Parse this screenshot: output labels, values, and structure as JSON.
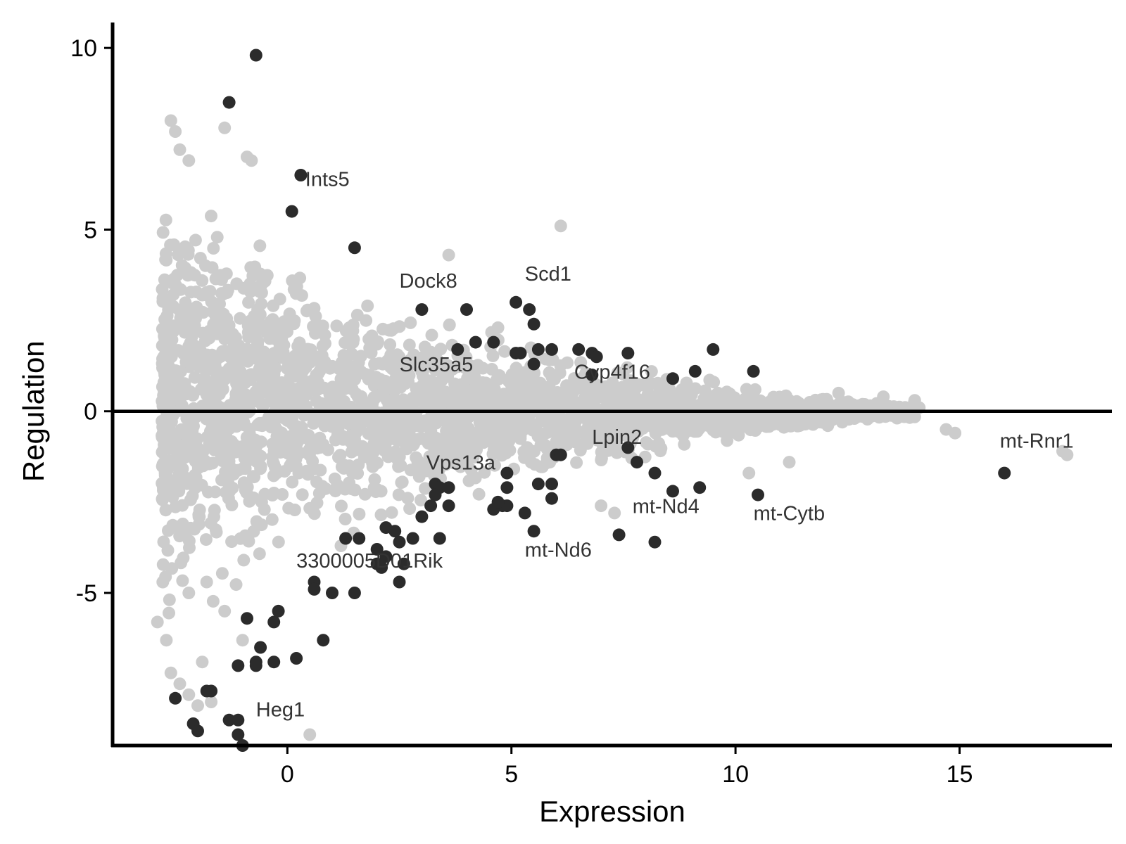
{
  "chart_data": {
    "type": "scatter",
    "xlabel": "Expression",
    "ylabel": "Regulation",
    "xlim": [
      -3.9,
      18.4
    ],
    "ylim": [
      -9.2,
      10.7
    ],
    "x_ticks": [
      0,
      5,
      10,
      15
    ],
    "y_ticks": [
      10,
      5,
      0,
      -5
    ],
    "x_tick_labels": [
      "0",
      "5",
      "10",
      "15"
    ],
    "y_tick_labels": [
      "10",
      "5",
      "0",
      "-5"
    ],
    "hline_y": 0,
    "grid": false,
    "legend": "none",
    "colors": {
      "background_points": "#cccccc",
      "highlight_points": "#2b2b2b",
      "label_text": "#333333",
      "axis": "#000000"
    },
    "background_cloud": {
      "description_free": true,
      "upper_envelope": [
        [
          -2.8,
          7.1
        ],
        [
          -2.0,
          7.6
        ],
        [
          -1.5,
          6.2
        ],
        [
          -0.8,
          6.4
        ],
        [
          -0.3,
          5.3
        ],
        [
          0.5,
          5.1
        ],
        [
          1.3,
          4.1
        ],
        [
          2.5,
          3.5
        ],
        [
          3.5,
          3.0
        ],
        [
          4.5,
          2.6
        ],
        [
          5.5,
          2.2
        ],
        [
          6.5,
          1.9
        ],
        [
          7.5,
          1.6
        ],
        [
          8.5,
          1.3
        ],
        [
          9.5,
          1.0
        ],
        [
          10.5,
          0.7
        ],
        [
          11.5,
          0.5
        ],
        [
          12.5,
          0.4
        ],
        [
          14.0,
          0.3
        ]
      ],
      "lower_envelope": [
        [
          -2.8,
          -7.2
        ],
        [
          -2.0,
          -6.8
        ],
        [
          -1.5,
          -6.2
        ],
        [
          -0.8,
          -5.3
        ],
        [
          -0.3,
          -4.6
        ],
        [
          0.5,
          -4.5
        ],
        [
          1.3,
          -4.2
        ],
        [
          2.5,
          -3.6
        ],
        [
          3.5,
          -3.0
        ],
        [
          4.5,
          -2.6
        ],
        [
          5.5,
          -2.3
        ],
        [
          6.5,
          -2.0
        ],
        [
          7.5,
          -1.7
        ],
        [
          8.5,
          -1.4
        ],
        [
          9.5,
          -1.1
        ],
        [
          10.5,
          -0.8
        ],
        [
          11.5,
          -0.6
        ],
        [
          12.5,
          -0.4
        ],
        [
          14.0,
          -0.3
        ]
      ]
    },
    "background_outliers": [
      [
        -2.6,
        8.0
      ],
      [
        -2.5,
        7.7
      ],
      [
        -1.4,
        7.8
      ],
      [
        -0.8,
        6.9
      ],
      [
        -0.9,
        7.0
      ],
      [
        -2.2,
        6.9
      ],
      [
        -2.4,
        7.2
      ],
      [
        6.1,
        5.1
      ],
      [
        3.6,
        4.3
      ],
      [
        4.7,
        2.3
      ],
      [
        11.2,
        0.3
      ],
      [
        12.3,
        0.5
      ],
      [
        12.6,
        0.1
      ],
      [
        13.3,
        0.4
      ],
      [
        14.0,
        0.3
      ],
      [
        14.1,
        0.1
      ],
      [
        14.7,
        -0.5
      ],
      [
        14.9,
        -0.6
      ],
      [
        17.3,
        -1.1
      ],
      [
        17.4,
        -1.2
      ],
      [
        10.3,
        -1.7
      ],
      [
        11.2,
        -1.4
      ],
      [
        7.0,
        -2.6
      ],
      [
        7.3,
        -2.8
      ],
      [
        0.5,
        -8.9
      ],
      [
        -2.6,
        -7.2
      ],
      [
        -2.4,
        -7.5
      ],
      [
        -2.2,
        -7.8
      ],
      [
        -2.0,
        -8.1
      ],
      [
        -1.7,
        -8.0
      ],
      [
        -2.9,
        -5.8
      ],
      [
        -2.7,
        -6.3
      ],
      [
        -2.2,
        -5.0
      ],
      [
        -1.8,
        -4.7
      ],
      [
        -1.4,
        -5.5
      ],
      [
        -1.9,
        -6.9
      ],
      [
        -1.0,
        -6.3
      ]
    ],
    "highlight_points": [
      [
        -0.7,
        9.8
      ],
      [
        -1.3,
        8.5
      ],
      [
        0.3,
        6.5
      ],
      [
        0.1,
        5.5
      ],
      [
        1.5,
        4.5
      ],
      [
        3.0,
        2.8
      ],
      [
        4.0,
        2.8
      ],
      [
        5.1,
        3.0
      ],
      [
        5.4,
        2.8
      ],
      [
        5.5,
        2.4
      ],
      [
        3.8,
        1.7
      ],
      [
        4.2,
        1.9
      ],
      [
        4.6,
        1.9
      ],
      [
        5.1,
        1.6
      ],
      [
        5.2,
        1.6
      ],
      [
        5.5,
        1.3
      ],
      [
        5.6,
        1.7
      ],
      [
        5.9,
        1.7
      ],
      [
        6.5,
        1.7
      ],
      [
        6.8,
        1.6
      ],
      [
        6.9,
        1.5
      ],
      [
        6.8,
        1.0
      ],
      [
        7.6,
        1.6
      ],
      [
        8.6,
        0.9
      ],
      [
        9.1,
        1.1
      ],
      [
        9.5,
        1.7
      ],
      [
        10.4,
        1.1
      ],
      [
        16.0,
        -1.7
      ],
      [
        10.5,
        -2.3
      ],
      [
        9.2,
        -2.1
      ],
      [
        8.6,
        -2.2
      ],
      [
        8.2,
        -1.7
      ],
      [
        7.8,
        -1.4
      ],
      [
        7.6,
        -1.0
      ],
      [
        6.0,
        -1.2
      ],
      [
        6.1,
        -1.2
      ],
      [
        5.6,
        -2.0
      ],
      [
        5.9,
        -2.0
      ],
      [
        5.9,
        -2.4
      ],
      [
        5.3,
        -2.8
      ],
      [
        5.5,
        -3.3
      ],
      [
        7.4,
        -3.4
      ],
      [
        8.2,
        -3.6
      ],
      [
        4.9,
        -1.7
      ],
      [
        4.9,
        -2.1
      ],
      [
        4.6,
        -2.7
      ],
      [
        4.8,
        -2.6
      ],
      [
        4.9,
        -2.6
      ],
      [
        4.7,
        -2.5
      ],
      [
        3.3,
        -2.0
      ],
      [
        3.4,
        -2.1
      ],
      [
        3.6,
        -2.1
      ],
      [
        3.3,
        -2.3
      ],
      [
        3.2,
        -2.6
      ],
      [
        3.6,
        -2.6
      ],
      [
        3.0,
        -2.9
      ],
      [
        3.4,
        -3.5
      ],
      [
        2.2,
        -3.2
      ],
      [
        2.4,
        -3.3
      ],
      [
        2.5,
        -3.6
      ],
      [
        2.8,
        -3.5
      ],
      [
        1.3,
        -3.5
      ],
      [
        1.6,
        -3.5
      ],
      [
        2.0,
        -3.8
      ],
      [
        2.2,
        -4.0
      ],
      [
        2.0,
        -4.2
      ],
      [
        2.1,
        -4.3
      ],
      [
        2.6,
        -4.2
      ],
      [
        0.6,
        -4.7
      ],
      [
        0.6,
        -4.9
      ],
      [
        1.0,
        -5.0
      ],
      [
        1.5,
        -5.0
      ],
      [
        2.5,
        -4.7
      ],
      [
        -0.9,
        -5.7
      ],
      [
        -0.3,
        -5.8
      ],
      [
        -0.2,
        -5.5
      ],
      [
        0.8,
        -6.3
      ],
      [
        -0.6,
        -6.5
      ],
      [
        -0.7,
        -6.9
      ],
      [
        -0.3,
        -6.9
      ],
      [
        0.2,
        -6.8
      ],
      [
        -1.1,
        -7.0
      ],
      [
        -0.7,
        -7.0
      ],
      [
        -1.7,
        -7.7
      ],
      [
        -1.8,
        -7.7
      ],
      [
        -2.5,
        -7.9
      ],
      [
        -1.3,
        -8.5
      ],
      [
        -1.1,
        -8.5
      ],
      [
        -2.1,
        -8.6
      ],
      [
        -2.0,
        -8.8
      ],
      [
        -1.1,
        -8.9
      ],
      [
        -1.0,
        -9.2
      ]
    ],
    "annotations": [
      {
        "text": "Ints5",
        "x": 0.4,
        "y": 6.2
      },
      {
        "text": "Dock8",
        "x": 2.5,
        "y": 3.4
      },
      {
        "text": "Scd1",
        "x": 5.3,
        "y": 3.6
      },
      {
        "text": "Slc35a5",
        "x": 2.5,
        "y": 1.1
      },
      {
        "text": "Cyp4f16",
        "x": 6.4,
        "y": 0.9
      },
      {
        "text": "mt-Rnr1",
        "x": 15.9,
        "y": -1.0
      },
      {
        "text": "Lpin2",
        "x": 6.8,
        "y": -0.9
      },
      {
        "text": "Vps13a",
        "x": 3.1,
        "y": -1.6
      },
      {
        "text": "mt-Nd4",
        "x": 7.7,
        "y": -2.8
      },
      {
        "text": "mt-Cytb",
        "x": 10.4,
        "y": -3.0
      },
      {
        "text": "mt-Nd6",
        "x": 5.3,
        "y": -4.0
      },
      {
        "text": "3300005D01Rik",
        "x": 0.2,
        "y": -4.3
      },
      {
        "text": "Heg1",
        "x": -0.7,
        "y": -8.4
      }
    ]
  }
}
